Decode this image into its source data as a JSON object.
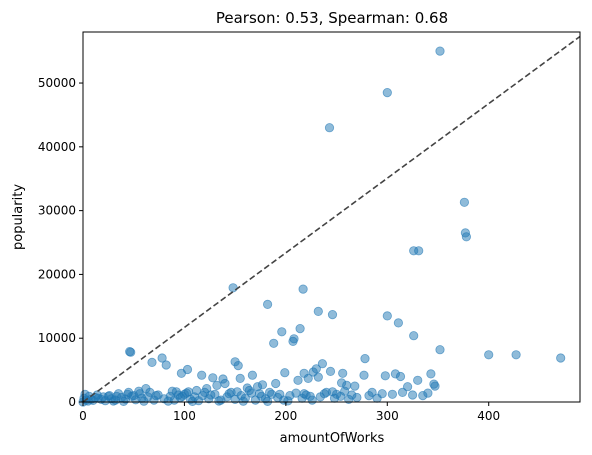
{
  "chart_data": {
    "type": "scatter",
    "title": "Pearson: 0.53, Spearman: 0.68",
    "xlabel": "amountOfWorks",
    "ylabel": "popularity",
    "xlim": [
      0,
      490
    ],
    "ylim": [
      0,
      58000
    ],
    "xticks": [
      0,
      100,
      200,
      300,
      400
    ],
    "yticks": [
      0,
      10000,
      20000,
      30000,
      40000,
      50000
    ],
    "grid": false,
    "point_color": "#1f77b4",
    "reference_line": {
      "style": "dashed",
      "color": "#444444",
      "from": [
        0,
        0
      ],
      "to": [
        490,
        57300
      ]
    },
    "points": [
      [
        352,
        55000
      ],
      [
        300,
        48500
      ],
      [
        243,
        43000
      ],
      [
        376,
        31300
      ],
      [
        377,
        26500
      ],
      [
        378,
        25900
      ],
      [
        326,
        23700
      ],
      [
        331,
        23700
      ],
      [
        148,
        17900
      ],
      [
        217,
        17700
      ],
      [
        182,
        15300
      ],
      [
        232,
        14200
      ],
      [
        246,
        13700
      ],
      [
        300,
        13500
      ],
      [
        311,
        12400
      ],
      [
        196,
        11000
      ],
      [
        214,
        11500
      ],
      [
        326,
        10400
      ],
      [
        208,
        9900
      ],
      [
        207,
        9500
      ],
      [
        188,
        9200
      ],
      [
        227,
        4700
      ],
      [
        244,
        4800
      ],
      [
        256,
        4500
      ],
      [
        352,
        8200
      ],
      [
        46,
        7900
      ],
      [
        47,
        7800
      ],
      [
        78,
        6900
      ],
      [
        150,
        6300
      ],
      [
        153,
        5700
      ],
      [
        68,
        6200
      ],
      [
        82,
        5800
      ],
      [
        103,
        5100
      ],
      [
        97,
        4500
      ],
      [
        117,
        4200
      ],
      [
        128,
        3800
      ],
      [
        138,
        3600
      ],
      [
        155,
        3700
      ],
      [
        167,
        4200
      ],
      [
        199,
        4600
      ],
      [
        218,
        4500
      ],
      [
        236,
        6000
      ],
      [
        230,
        5200
      ],
      [
        278,
        6800
      ],
      [
        308,
        4400
      ],
      [
        313,
        4000
      ],
      [
        320,
        2400
      ],
      [
        330,
        3400
      ],
      [
        343,
        4400
      ],
      [
        346,
        2800
      ],
      [
        347,
        2500
      ],
      [
        400,
        7400
      ],
      [
        427,
        7400
      ],
      [
        471,
        6900
      ],
      [
        298,
        4100
      ],
      [
        277,
        4200
      ],
      [
        255,
        3000
      ],
      [
        260,
        2600
      ],
      [
        268,
        2500
      ],
      [
        250,
        1200
      ],
      [
        240,
        1500
      ],
      [
        232,
        3900
      ],
      [
        222,
        3700
      ],
      [
        212,
        3400
      ],
      [
        190,
        2900
      ],
      [
        177,
        2700
      ],
      [
        172,
        2400
      ],
      [
        162,
        2200
      ],
      [
        140,
        2900
      ],
      [
        132,
        2600
      ],
      [
        122,
        2100
      ],
      [
        112,
        1800
      ],
      [
        102,
        1400
      ],
      [
        92,
        1600
      ],
      [
        62,
        2100
      ],
      [
        55,
        1700
      ],
      [
        45,
        1500
      ],
      [
        35,
        1300
      ],
      [
        25,
        900
      ],
      [
        15,
        600
      ],
      [
        8,
        400
      ],
      [
        2,
        1200
      ],
      [
        3,
        300
      ],
      [
        5,
        150
      ],
      [
        10,
        250
      ],
      [
        12,
        700
      ],
      [
        18,
        400
      ],
      [
        22,
        200
      ],
      [
        28,
        500
      ],
      [
        32,
        300
      ],
      [
        38,
        700
      ],
      [
        42,
        450
      ],
      [
        48,
        900
      ],
      [
        52,
        350
      ],
      [
        58,
        600
      ],
      [
        64,
        800
      ],
      [
        70,
        300
      ],
      [
        74,
        1100
      ],
      [
        80,
        500
      ],
      [
        86,
        900
      ],
      [
        90,
        300
      ],
      [
        96,
        700
      ],
      [
        100,
        1200
      ],
      [
        106,
        400
      ],
      [
        110,
        800
      ],
      [
        114,
        200
      ],
      [
        118,
        1000
      ],
      [
        124,
        500
      ],
      [
        130,
        1200
      ],
      [
        136,
        300
      ],
      [
        142,
        800
      ],
      [
        146,
        1500
      ],
      [
        150,
        400
      ],
      [
        156,
        1000
      ],
      [
        160,
        600
      ],
      [
        166,
        1400
      ],
      [
        170,
        300
      ],
      [
        176,
        900
      ],
      [
        180,
        500
      ],
      [
        186,
        1200
      ],
      [
        192,
        700
      ],
      [
        198,
        300
      ],
      [
        204,
        1000
      ],
      [
        210,
        1400
      ],
      [
        216,
        600
      ],
      [
        220,
        1100
      ],
      [
        226,
        300
      ],
      [
        234,
        800
      ],
      [
        238,
        1300
      ],
      [
        248,
        600
      ],
      [
        254,
        900
      ],
      [
        262,
        400
      ],
      [
        270,
        700
      ],
      [
        285,
        1500
      ],
      [
        290,
        600
      ],
      [
        30,
        150
      ],
      [
        40,
        100
      ],
      [
        60,
        120
      ],
      [
        84,
        140
      ],
      [
        108,
        90
      ],
      [
        134,
        160
      ],
      [
        158,
        120
      ],
      [
        182,
        100
      ],
      [
        202,
        180
      ],
      [
        0,
        0
      ],
      [
        1,
        600
      ],
      [
        6,
        900
      ],
      [
        14,
        1100
      ],
      [
        20,
        800
      ],
      [
        26,
        1000
      ],
      [
        33,
        900
      ],
      [
        44,
        1200
      ],
      [
        50,
        1000
      ],
      [
        56,
        1300
      ],
      [
        66,
        1500
      ],
      [
        72,
        1000
      ],
      [
        88,
        1700
      ],
      [
        94,
        1100
      ],
      [
        98,
        900
      ],
      [
        104,
        1600
      ],
      [
        120,
        1500
      ],
      [
        126,
        1100
      ],
      [
        144,
        1300
      ],
      [
        152,
        1600
      ],
      [
        164,
        1800
      ],
      [
        174,
        1300
      ],
      [
        184,
        1500
      ],
      [
        194,
        1200
      ],
      [
        218,
        1300
      ],
      [
        224,
        900
      ],
      [
        246,
        1600
      ],
      [
        258,
        1700
      ],
      [
        265,
        1100
      ],
      [
        282,
        1000
      ],
      [
        295,
        1300
      ],
      [
        305,
        1200
      ],
      [
        315,
        1500
      ],
      [
        325,
        1100
      ],
      [
        335,
        1000
      ],
      [
        340,
        1400
      ]
    ]
  }
}
